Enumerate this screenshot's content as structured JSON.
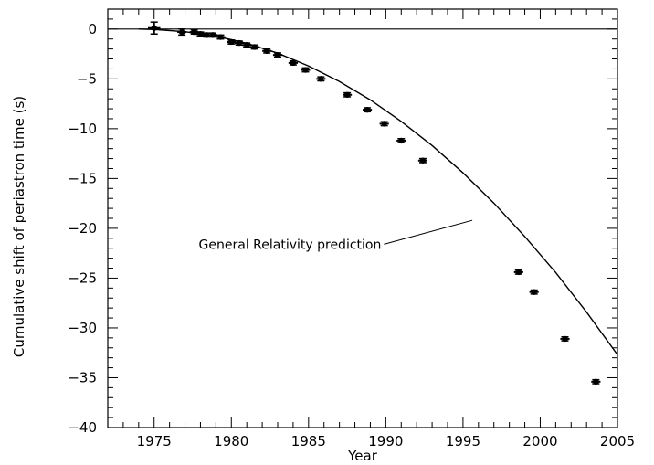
{
  "chart_data": {
    "type": "scatter",
    "title": "",
    "xlabel": "Year",
    "ylabel": "Cumulative shift of periastron time (s)",
    "xlim": [
      1972,
      2005
    ],
    "ylim": [
      -40,
      2
    ],
    "xticks": [
      1975,
      1980,
      1985,
      1990,
      1995,
      2000,
      2005
    ],
    "yticks": [
      0,
      -5,
      -10,
      -15,
      -20,
      -25,
      -30,
      -35,
      -40
    ],
    "grid": false,
    "zero_line": 0,
    "series": [
      {
        "kind": "points",
        "x": [
          1975.0,
          1976.8,
          1977.6,
          1978.0,
          1978.4,
          1978.8,
          1979.3,
          1980.0,
          1980.5,
          1981.0,
          1981.5,
          1982.3,
          1983.0,
          1984.0,
          1984.8,
          1985.8,
          1987.5,
          1988.8,
          1989.9,
          1991.0,
          1992.4,
          1998.6,
          1999.6,
          2001.6,
          2003.6
        ],
        "y": [
          0.1,
          -0.3,
          -0.3,
          -0.5,
          -0.6,
          -0.6,
          -0.8,
          -1.3,
          -1.4,
          -1.6,
          -1.8,
          -2.2,
          -2.6,
          -3.4,
          -4.1,
          -5.0,
          -6.6,
          -8.1,
          -9.5,
          -11.2,
          -13.2,
          -24.4,
          -26.4,
          -31.1,
          -35.4
        ],
        "xerr": [
          0.4,
          0.3,
          0.3,
          0.3,
          0.3,
          0.3,
          0.3,
          0.3,
          0.3,
          0.3,
          0.3,
          0.3,
          0.3,
          0.3,
          0.3,
          0.3,
          0.3,
          0.3,
          0.3,
          0.3,
          0.3,
          0.3,
          0.3,
          0.3,
          0.3
        ],
        "yerr": [
          0.6,
          0.3,
          0.2,
          0.2,
          0.2,
          0.2,
          0.2,
          0.2,
          0.2,
          0.2,
          0.2,
          0.2,
          0.2,
          0.2,
          0.2,
          0.2,
          0.2,
          0.2,
          0.2,
          0.2,
          0.2,
          0.2,
          0.2,
          0.2,
          0.2
        ]
      },
      {
        "kind": "curve",
        "x": [
          1974.0,
          1975.0,
          1977.0,
          1979.0,
          1981.0,
          1983.0,
          1985.0,
          1987.0,
          1989.0,
          1991.0,
          1993.0,
          1995.0,
          1997.0,
          1999.0,
          2001.0,
          2003.0,
          2005.0
        ],
        "y": [
          0.0,
          -0.04,
          -0.26,
          -0.71,
          -1.43,
          -2.42,
          -3.71,
          -5.27,
          -7.11,
          -9.27,
          -11.69,
          -14.43,
          -17.47,
          -20.83,
          -24.44,
          -28.42,
          -32.69
        ]
      }
    ],
    "annotations": [
      {
        "text": "General Relativity prediction",
        "points_to": [
          1995.6,
          -19.2
        ],
        "label_at": [
          1990.0,
          -21.6
        ]
      }
    ]
  }
}
